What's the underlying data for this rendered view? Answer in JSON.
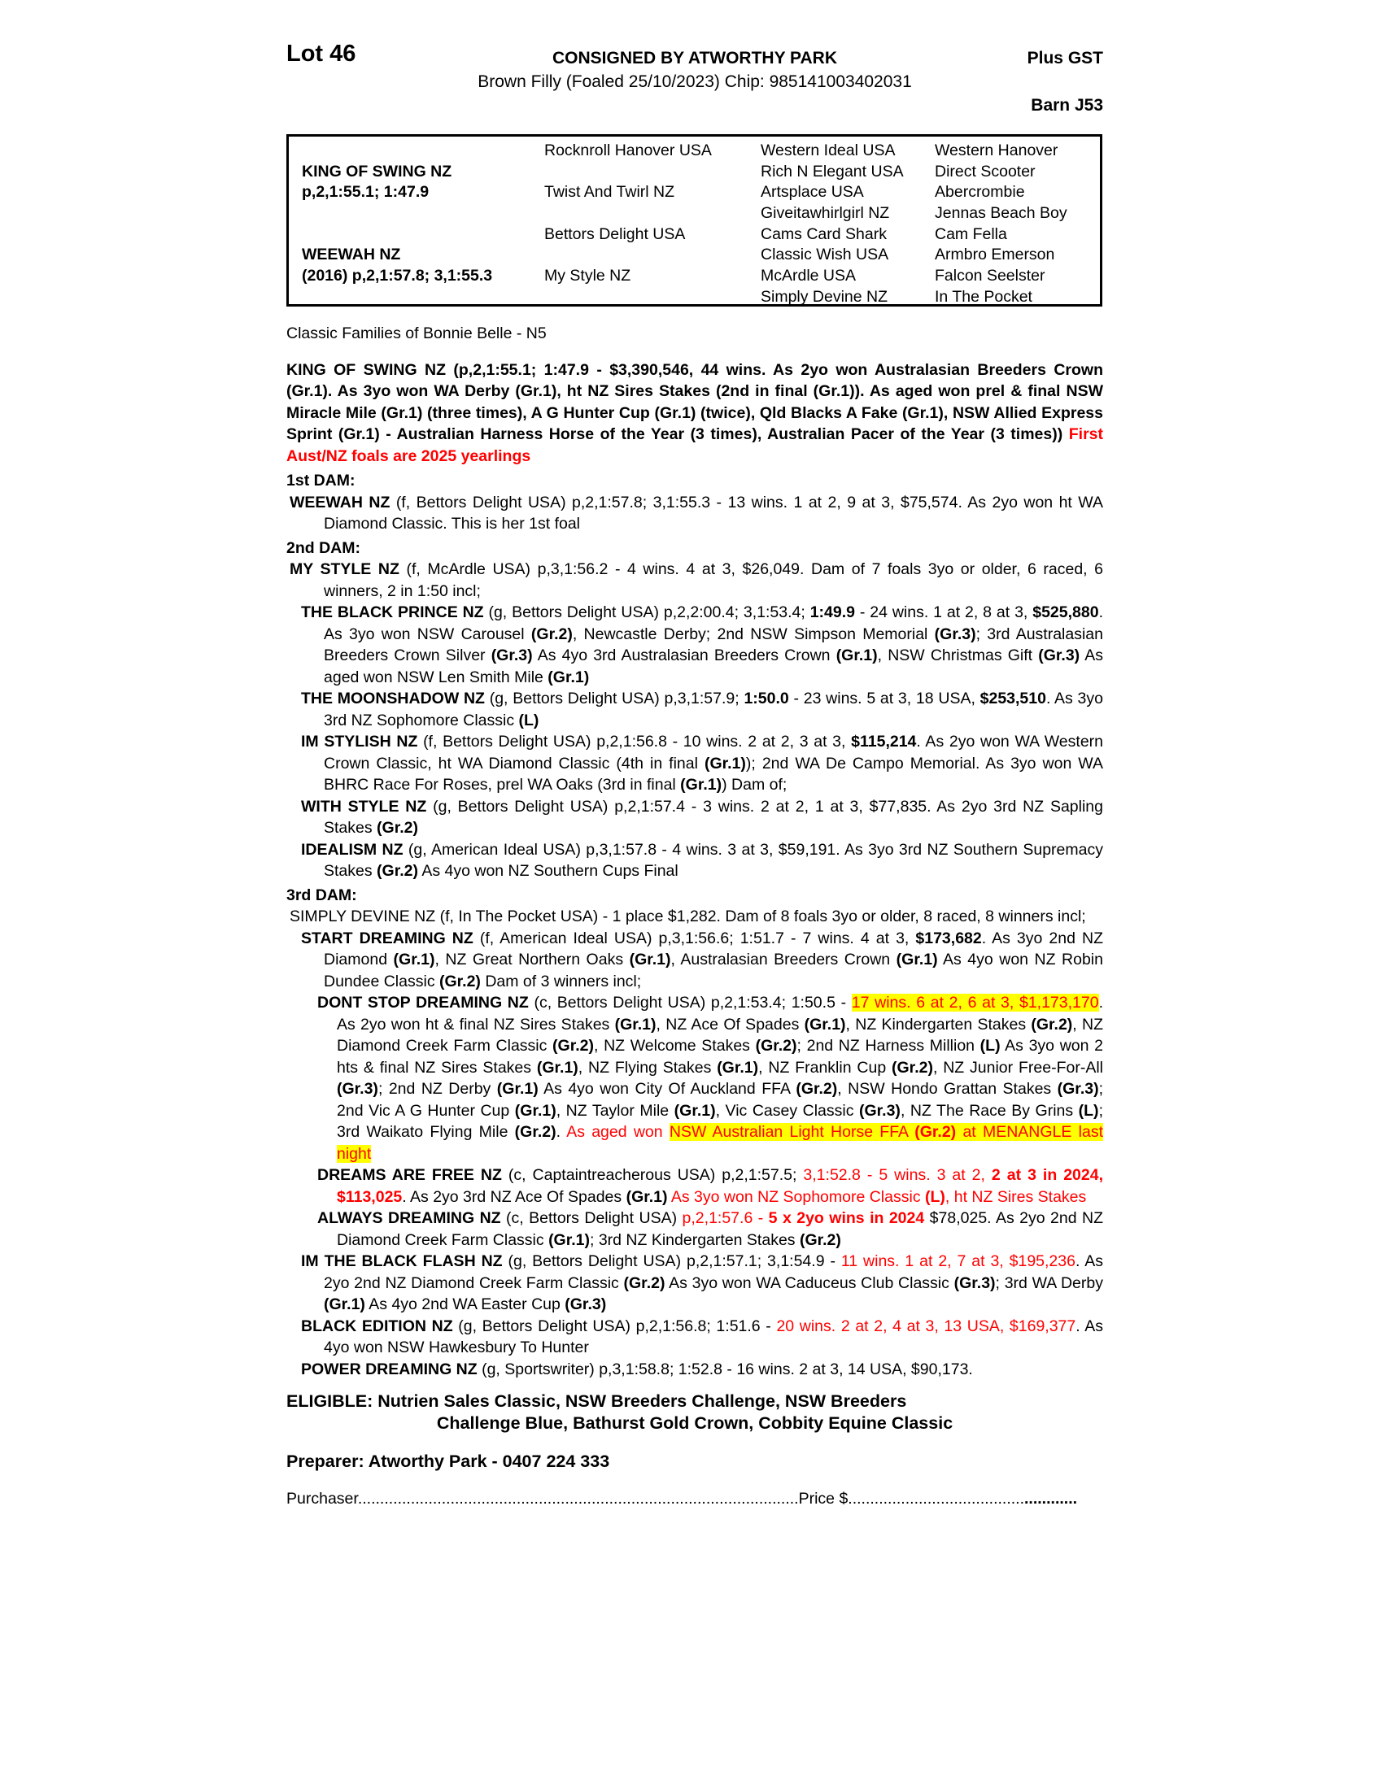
{
  "page": {
    "lot": "Lot 46",
    "consigned": "CONSIGNED BY ATWORTHY PARK",
    "subtitle": "Brown Filly (Foaled 25/10/2023) Chip: 985141003402031",
    "plus_gst": "Plus GST",
    "barn": "Barn J53"
  },
  "colors": {
    "text": "#000000",
    "red": "#ff0000",
    "highlight": "#ffff00"
  },
  "pedigree_table": {
    "rows": [
      [
        "",
        "Rocknroll Hanover USA",
        "Western Ideal USA",
        "Western Hanover"
      ],
      [
        "KING OF SWING NZ",
        "",
        "Rich N Elegant USA",
        "Direct Scooter"
      ],
      [
        "p,2,1:55.1; 1:47.9",
        "Twist And Twirl NZ",
        "Artsplace USA",
        "Abercrombie"
      ],
      [
        "",
        "",
        "Giveitawhirlgirl NZ",
        "Jennas Beach Boy"
      ],
      [
        "",
        "Bettors Delight USA",
        "Cams Card Shark",
        "Cam Fella"
      ],
      [
        "WEEWAH NZ",
        "",
        "Classic Wish USA",
        "Armbro Emerson"
      ],
      [
        "(2016) p,2,1:57.8; 3,1:55.3",
        "My Style NZ",
        "McArdle USA",
        "Falcon Seelster"
      ],
      [
        "",
        "",
        "Simply Devine NZ",
        "In The Pocket"
      ]
    ]
  },
  "body": {
    "family_line": "Classic Families of Bonnie Belle - N5",
    "paragraphs": [
      {
        "name": "sire-summary",
        "indent": "sire",
        "segments": [
          {
            "t": "KING OF SWING NZ (p,2,1:55.1; 1:47.9 - $3,390,546, 44 wins. As 2yo won Australasian Breeders Crown (Gr.1). As 3yo won WA Derby (Gr.1), ht NZ Sires Stakes (2nd in final (Gr.1)). As aged won prel & final NSW Miracle Mile (Gr.1) (three times), A G Hunter Cup (Gr.1) (twice), Qld Blacks A Fake (Gr.1), NSW Allied Express Sprint (Gr.1) - Australian Harness Horse of the Year (3 times), Australian Pacer of the Year (3 times)) ",
            "b": true
          },
          {
            "t": "First Aust/NZ foals are 2025 yearlings",
            "b": true,
            "r": true
          }
        ]
      },
      {
        "name": "dam-heading-1",
        "indent": "heading",
        "segments": [
          {
            "t": "1st DAM:",
            "b": true
          }
        ]
      },
      {
        "name": "weewah",
        "indent": "a",
        "segments": [
          {
            "t": "WEEWAH NZ ",
            "b": true
          },
          {
            "t": "(f, Bettors Delight USA) p,2,1:57.8; 3,1:55.3 - 13 wins. 1 at 2, 9 at 3, $75,574. As 2yo won ht WA Diamond Classic. This is her 1st foal"
          }
        ]
      },
      {
        "name": "dam-heading-2",
        "indent": "heading",
        "segments": [
          {
            "t": "2nd DAM:",
            "b": true
          }
        ]
      },
      {
        "name": "my-style",
        "indent": "a",
        "segments": [
          {
            "t": "MY STYLE NZ ",
            "b": true
          },
          {
            "t": "(f, McArdle USA) p,3,1:56.2 - 4 wins. 4 at 3, $26,049. Dam of 7 foals 3yo or older, 6 raced, 6 winners, 2 in 1:50 incl;"
          }
        ]
      },
      {
        "name": "the-black-prince",
        "indent": "b",
        "segments": [
          {
            "t": "THE BLACK PRINCE NZ ",
            "b": true
          },
          {
            "t": "(g, Bettors Delight USA) p,2,2:00.4; 3,1:53.4; "
          },
          {
            "t": "1:49.9",
            "b": true
          },
          {
            "t": " - 24 wins. 1 at 2, 8 at 3, "
          },
          {
            "t": "$525,880",
            "b": true
          },
          {
            "t": ". As 3yo won NSW Carousel "
          },
          {
            "t": "(Gr.2)",
            "b": true
          },
          {
            "t": ", Newcastle Derby; 2nd NSW Simpson Memorial "
          },
          {
            "t": "(Gr.3)",
            "b": true
          },
          {
            "t": "; 3rd Australasian Breeders Crown Silver "
          },
          {
            "t": "(Gr.3)",
            "b": true
          },
          {
            "t": " As 4yo 3rd Australasian Breeders Crown "
          },
          {
            "t": "(Gr.1)",
            "b": true
          },
          {
            "t": ", NSW Christmas Gift "
          },
          {
            "t": "(Gr.3)",
            "b": true
          },
          {
            "t": " As aged won NSW Len Smith Mile "
          },
          {
            "t": "(Gr.1)",
            "b": true
          }
        ]
      },
      {
        "name": "the-moonshadow",
        "indent": "b",
        "segments": [
          {
            "t": "THE MOONSHADOW NZ ",
            "b": true
          },
          {
            "t": "(g, Bettors Delight USA) p,3,1:57.9; "
          },
          {
            "t": "1:50.0",
            "b": true
          },
          {
            "t": " - 23 wins. 5 at 3, 18 USA, "
          },
          {
            "t": "$253,510",
            "b": true
          },
          {
            "t": ". As 3yo 3rd NZ Sophomore Classic "
          },
          {
            "t": "(L)",
            "b": true
          }
        ]
      },
      {
        "name": "im-stylish",
        "indent": "b",
        "segments": [
          {
            "t": "IM STYLISH NZ ",
            "b": true
          },
          {
            "t": "(f, Bettors Delight USA) p,2,1:56.8 - 10 wins. 2 at 2, 3 at 3, "
          },
          {
            "t": "$115,214",
            "b": true
          },
          {
            "t": ". As 2yo won WA Western Crown Classic, ht WA Diamond Classic (4th in final "
          },
          {
            "t": "(Gr.1)",
            "b": true
          },
          {
            "t": "); 2nd WA De Campo Memorial. As 3yo won WA BHRC Race For Roses, prel WA Oaks (3rd in final "
          },
          {
            "t": "(Gr.1)",
            "b": true
          },
          {
            "t": ") Dam of;"
          }
        ]
      },
      {
        "name": "with-style",
        "indent": "b",
        "segments": [
          {
            "t": "WITH STYLE NZ ",
            "b": true
          },
          {
            "t": "(g, Bettors Delight USA) p,2,1:57.4 - 3 wins. 2 at 2, 1 at 3, $77,835. As 2yo 3rd NZ Sapling Stakes "
          },
          {
            "t": "(Gr.2)",
            "b": true
          }
        ]
      },
      {
        "name": "idealism",
        "indent": "b",
        "segments": [
          {
            "t": "IDEALISM NZ ",
            "b": true
          },
          {
            "t": "(g, American Ideal USA) p,3,1:57.8 - 4 wins. 3 at 3, $59,191. As 3yo 3rd NZ Southern Supremacy Stakes "
          },
          {
            "t": "(Gr.2)",
            "b": true
          },
          {
            "t": " As 4yo won NZ Southern Cups Final"
          }
        ]
      },
      {
        "name": "dam-heading-3",
        "indent": "heading",
        "segments": [
          {
            "t": "3rd DAM:",
            "b": true
          }
        ]
      },
      {
        "name": "simply-devine",
        "indent": "a",
        "segments": [
          {
            "t": "SIMPLY DEVINE NZ (f, In The Pocket USA) - 1 place $1,282. Dam of 8 foals 3yo or older, 8 raced, 8 winners incl;"
          }
        ]
      },
      {
        "name": "start-dreaming",
        "indent": "b",
        "segments": [
          {
            "t": "START DREAMING NZ ",
            "b": true
          },
          {
            "t": "(f, American Ideal USA) p,3,1:56.6; 1:51.7 - 7 wins. 4 at 3, "
          },
          {
            "t": "$173,682",
            "b": true
          },
          {
            "t": ". As 3yo 2nd NZ Diamond "
          },
          {
            "t": "(Gr.1)",
            "b": true
          },
          {
            "t": ", NZ Great Northern Oaks "
          },
          {
            "t": "(Gr.1)",
            "b": true
          },
          {
            "t": ", Australasian Breeders Crown "
          },
          {
            "t": "(Gr.1)",
            "b": true
          },
          {
            "t": " As 4yo won NZ Robin Dundee Classic "
          },
          {
            "t": "(Gr.2)",
            "b": true
          },
          {
            "t": " Dam of 3 winners incl;"
          }
        ]
      },
      {
        "name": "dont-stop-dreaming",
        "indent": "c",
        "segments": [
          {
            "t": "DONT STOP DREAMING NZ ",
            "b": true
          },
          {
            "t": "(c, Bettors Delight USA) p,2,1:53.4; 1:50.5 - "
          },
          {
            "t": "17 wins. 6 at 2, 6 at 3, ",
            "r": true,
            "h": true
          },
          {
            "t": "$1,173,170",
            "r": true,
            "h": true
          },
          {
            "t": ". As 2yo won ht & final NZ Sires Stakes "
          },
          {
            "t": "(Gr.1)",
            "b": true
          },
          {
            "t": ", NZ Ace Of Spades "
          },
          {
            "t": "(Gr.1)",
            "b": true
          },
          {
            "t": ", NZ Kindergarten Stakes "
          },
          {
            "t": "(Gr.2)",
            "b": true
          },
          {
            "t": ", NZ Diamond Creek Farm Classic "
          },
          {
            "t": "(Gr.2)",
            "b": true
          },
          {
            "t": ", NZ Welcome Stakes "
          },
          {
            "t": "(Gr.2)",
            "b": true
          },
          {
            "t": "; 2nd NZ Harness Million "
          },
          {
            "t": "(L)",
            "b": true
          },
          {
            "t": " As 3yo won 2 hts & final NZ Sires Stakes "
          },
          {
            "t": "(Gr.1)",
            "b": true
          },
          {
            "t": ", NZ Flying Stakes "
          },
          {
            "t": "(Gr.1)",
            "b": true
          },
          {
            "t": ", NZ Franklin Cup "
          },
          {
            "t": "(Gr.2)",
            "b": true
          },
          {
            "t": ", NZ Junior Free-For-All "
          },
          {
            "t": "(Gr.3)",
            "b": true
          },
          {
            "t": "; 2nd NZ Derby "
          },
          {
            "t": "(Gr.1)",
            "b": true
          },
          {
            "t": " As 4yo won City Of Auckland FFA "
          },
          {
            "t": "(Gr.2)",
            "b": true
          },
          {
            "t": ", NSW Hondo Grattan Stakes "
          },
          {
            "t": "(Gr.3)",
            "b": true
          },
          {
            "t": "; 2nd Vic A G Hunter Cup "
          },
          {
            "t": "(Gr.1)",
            "b": true
          },
          {
            "t": ", NZ Taylor Mile "
          },
          {
            "t": "(Gr.1)",
            "b": true
          },
          {
            "t": ", Vic Casey Classic "
          },
          {
            "t": "(Gr.3)",
            "b": true
          },
          {
            "t": ", NZ The Race By Grins "
          },
          {
            "t": "(L)",
            "b": true
          },
          {
            "t": "; 3rd Waikato Flying Mile "
          },
          {
            "t": "(Gr.2)",
            "b": true
          },
          {
            "t": ". "
          },
          {
            "t": "As aged won ",
            "r": true
          },
          {
            "t": "NSW Australian Light Horse FFA ",
            "r": true,
            "h": true
          },
          {
            "t": "(Gr.2)",
            "r": true,
            "h": true,
            "b": true
          },
          {
            "t": " at MENANGLE last night",
            "r": true,
            "h": true
          }
        ]
      },
      {
        "name": "dreams-are-free",
        "indent": "c",
        "segments": [
          {
            "t": "DREAMS ARE FREE NZ ",
            "b": true
          },
          {
            "t": "(c, Captaintreacherous USA) p,2,1:57.5; "
          },
          {
            "t": "3,1:52.8 - 5 wins. 3 at 2, ",
            "r": true
          },
          {
            "t": "2 at 3 in 2024, $113,025",
            "r": true,
            "b": true
          },
          {
            "t": ". As 2yo 3rd NZ Ace Of Spades "
          },
          {
            "t": "(Gr.1)",
            "b": true
          },
          {
            "t": " "
          },
          {
            "t": "As 3yo won NZ Sophomore Classic ",
            "r": true
          },
          {
            "t": "(L)",
            "r": true,
            "b": true
          },
          {
            "t": ", ht NZ Sires Stakes",
            "r": true
          }
        ]
      },
      {
        "name": "always-dreaming",
        "indent": "c",
        "segments": [
          {
            "t": "ALWAYS DREAMING NZ ",
            "b": true
          },
          {
            "t": "(c, Bettors Delight USA) "
          },
          {
            "t": "p,2,1:57.6 - ",
            "r": true
          },
          {
            "t": "5 x 2yo wins in 2024",
            "r": true,
            "b": true
          },
          {
            "t": " $78,025. As 2yo 2nd NZ Diamond Creek Farm Classic "
          },
          {
            "t": "(Gr.1)",
            "b": true
          },
          {
            "t": "; 3rd NZ Kindergarten Stakes "
          },
          {
            "t": "(Gr.2)",
            "b": true
          }
        ]
      },
      {
        "name": "im-the-black-flash",
        "indent": "b",
        "segments": [
          {
            "t": "IM THE BLACK FLASH NZ ",
            "b": true
          },
          {
            "t": "(g, Bettors Delight USA) p,2,1:57.1; 3,1:54.9 - "
          },
          {
            "t": "11 wins. 1 at 2, 7 at 3, $195,236",
            "r": true
          },
          {
            "t": ". As 2yo 2nd NZ Diamond Creek Farm Classic "
          },
          {
            "t": "(Gr.2)",
            "b": true
          },
          {
            "t": " As 3yo won WA Caduceus Club Classic "
          },
          {
            "t": "(Gr.3)",
            "b": true
          },
          {
            "t": "; 3rd WA Derby "
          },
          {
            "t": "(Gr.1)",
            "b": true
          },
          {
            "t": " As 4yo 2nd WA Easter Cup "
          },
          {
            "t": "(Gr.3)",
            "b": true
          }
        ]
      },
      {
        "name": "black-edition",
        "indent": "b",
        "segments": [
          {
            "t": "BLACK EDITION NZ ",
            "b": true
          },
          {
            "t": "(g, Bettors Delight USA) p,2,1:56.8; 1:51.6 - "
          },
          {
            "t": "20 wins. 2 at 2, 4 at 3, 13 USA, $169,377",
            "r": true
          },
          {
            "t": ". As 4yo won NSW Hawkesbury To Hunter"
          }
        ]
      },
      {
        "name": "power-dreaming",
        "indent": "b",
        "segments": [
          {
            "t": "POWER DREAMING NZ ",
            "b": true
          },
          {
            "t": "(g, Sportswriter) p,3,1:58.8; 1:52.8 - 16 wins. 2 at 3, 14 USA, $90,173."
          }
        ]
      }
    ]
  },
  "eligible": {
    "line1": "ELIGIBLE: Nutrien Sales Classic, NSW Breeders Challenge, NSW Breeders",
    "line2": "Challenge Blue, Bathurst Gold Crown, Cobbity Equine Classic"
  },
  "preparer": "Preparer: Atworthy Park - 0407 224 333",
  "purchase_line": {
    "segments": [
      {
        "t": "Purchaser"
      },
      {
        "t": "...................................................................................................."
      },
      {
        "t": "Price $"
      },
      {
        "t": "........................................"
      },
      {
        "t": "............",
        "b": true
      }
    ]
  }
}
